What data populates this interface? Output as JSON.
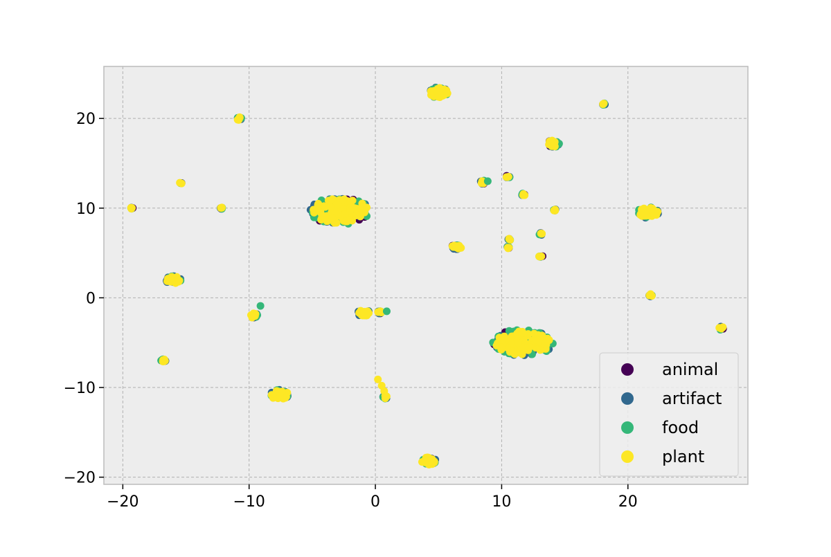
{
  "chart_data": {
    "type": "scatter",
    "title": "",
    "xlabel": "",
    "ylabel": "",
    "xlim": [
      -21.5,
      29.5
    ],
    "ylim": [
      -20.8,
      25.8
    ],
    "xticks": [
      -20,
      -10,
      0,
      10,
      20
    ],
    "yticks": [
      -20,
      -10,
      0,
      10,
      20
    ],
    "xtick_labels": [
      "−20",
      "−10",
      "0",
      "10",
      "20"
    ],
    "ytick_labels": [
      "−20",
      "−10",
      "0",
      "10",
      "20"
    ],
    "grid": true,
    "legend_position": "lower-right",
    "series": [
      {
        "name": "animal",
        "color": "#440154"
      },
      {
        "name": "artifact",
        "color": "#31688e"
      },
      {
        "name": "food",
        "color": "#35b779"
      },
      {
        "name": "plant",
        "color": "#fde725"
      }
    ],
    "clusters": [
      {
        "x": -2.8,
        "y": 9.7,
        "rx": 2.4,
        "ry": 1.5,
        "n": 90
      },
      {
        "x": 11.7,
        "y": -5.0,
        "rx": 2.4,
        "ry": 1.5,
        "n": 90
      },
      {
        "x": 5.0,
        "y": 22.9,
        "rx": 0.8,
        "ry": 0.6,
        "n": 30
      },
      {
        "x": 21.6,
        "y": 9.5,
        "rx": 0.9,
        "ry": 0.6,
        "n": 30
      },
      {
        "x": -16.0,
        "y": 2.0,
        "rx": 0.6,
        "ry": 0.45,
        "n": 22
      },
      {
        "x": -7.6,
        "y": -10.8,
        "rx": 0.8,
        "ry": 0.55,
        "n": 24
      },
      {
        "x": 4.2,
        "y": -18.2,
        "rx": 0.6,
        "ry": 0.45,
        "n": 22
      },
      {
        "x": -0.9,
        "y": -1.7,
        "rx": 0.55,
        "ry": 0.35,
        "n": 20
      },
      {
        "x": 14.1,
        "y": 17.2,
        "rx": 0.5,
        "ry": 0.4,
        "n": 16
      },
      {
        "x": 6.4,
        "y": 5.6,
        "rx": 0.45,
        "ry": 0.3,
        "n": 14
      },
      {
        "x": -9.6,
        "y": -2.0,
        "rx": 0.3,
        "ry": 0.3,
        "n": 10
      },
      {
        "x": 8.5,
        "y": 12.9,
        "rx": 0.2,
        "ry": 0.2,
        "n": 6
      },
      {
        "x": 0.3,
        "y": -1.6,
        "rx": 0.2,
        "ry": 0.15,
        "n": 6
      },
      {
        "x": 0.8,
        "y": -11.1,
        "rx": 0.2,
        "ry": 0.2,
        "n": 5
      },
      {
        "x": -10.8,
        "y": 20.0,
        "rx": 0.2,
        "ry": 0.2,
        "n": 5
      },
      {
        "x": -16.8,
        "y": -7.0,
        "rx": 0.2,
        "ry": 0.2,
        "n": 5
      },
      {
        "x": 27.4,
        "y": -3.4,
        "rx": 0.2,
        "ry": 0.2,
        "n": 4
      },
      {
        "x": 21.8,
        "y": 0.3,
        "rx": 0.15,
        "ry": 0.15,
        "n": 4
      },
      {
        "x": 13.1,
        "y": 4.6,
        "rx": 0.15,
        "ry": 0.15,
        "n": 3
      },
      {
        "x": 13.1,
        "y": 7.1,
        "rx": 0.15,
        "ry": 0.15,
        "n": 3
      },
      {
        "x": 11.7,
        "y": 11.5,
        "rx": 0.15,
        "ry": 0.15,
        "n": 3
      },
      {
        "x": 10.5,
        "y": 13.5,
        "rx": 0.15,
        "ry": 0.15,
        "n": 3
      },
      {
        "x": 18.1,
        "y": 21.6,
        "rx": 0.1,
        "ry": 0.1,
        "n": 3
      },
      {
        "x": 14.2,
        "y": 9.8,
        "rx": 0.1,
        "ry": 0.1,
        "n": 3
      },
      {
        "x": 10.6,
        "y": 6.5,
        "rx": 0.1,
        "ry": 0.1,
        "n": 3
      },
      {
        "x": 10.5,
        "y": 5.6,
        "rx": 0.1,
        "ry": 0.1,
        "n": 3
      },
      {
        "x": -19.3,
        "y": 10.0,
        "rx": 0.1,
        "ry": 0.1,
        "n": 3
      },
      {
        "x": -12.2,
        "y": 10.0,
        "rx": 0.1,
        "ry": 0.1,
        "n": 3
      },
      {
        "x": -15.4,
        "y": 12.8,
        "rx": 0.1,
        "ry": 0.1,
        "n": 2
      }
    ],
    "extra_points": [
      {
        "x": 8.9,
        "y": 13.0,
        "series": "food"
      },
      {
        "x": -9.1,
        "y": -0.9,
        "series": "food"
      },
      {
        "x": 0.9,
        "y": -1.5,
        "series": "food"
      },
      {
        "x": 0.2,
        "y": -9.1,
        "series": "plant"
      },
      {
        "x": 0.5,
        "y": -9.8,
        "series": "plant"
      },
      {
        "x": 0.7,
        "y": -10.4,
        "series": "plant"
      }
    ]
  }
}
